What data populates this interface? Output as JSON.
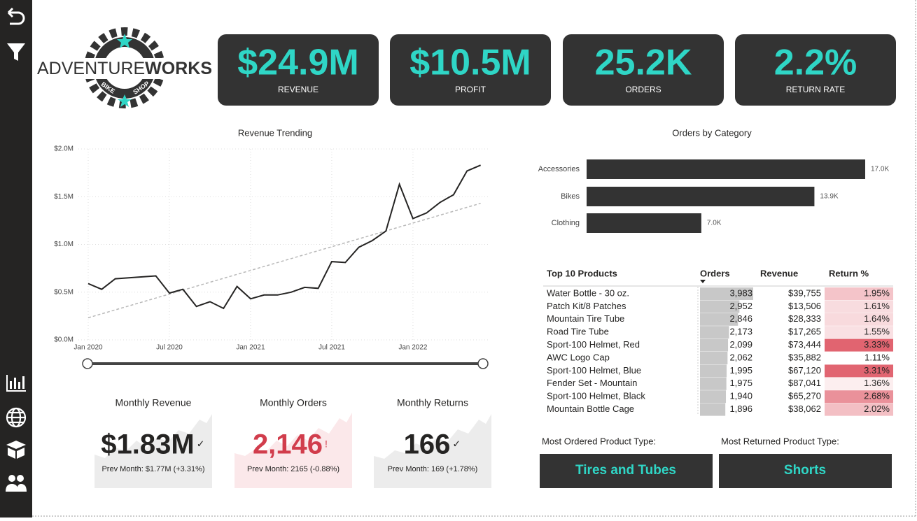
{
  "logo": {
    "name_light": "ADVENTURE",
    "name_bold": "WORKS",
    "ribbon_left": "BIKE",
    "ribbon_right": "SHOP"
  },
  "kpis": [
    {
      "value": "$24.9M",
      "label": "REVENUE"
    },
    {
      "value": "$10.5M",
      "label": "PROFIT"
    },
    {
      "value": "25.2K",
      "label": "ORDERS"
    },
    {
      "value": "2.2%",
      "label": "RETURN RATE"
    }
  ],
  "chart_data": [
    {
      "type": "line",
      "title": "Revenue Trending",
      "categories": [
        "Jan 2020",
        null,
        null,
        null,
        null,
        null,
        "Jul 2020",
        null,
        null,
        null,
        null,
        null,
        "Jan 2021",
        null,
        null,
        null,
        null,
        null,
        "Jul 2021",
        null,
        null,
        null,
        null,
        null,
        "Jan 2022",
        null,
        null,
        null,
        null,
        null
      ],
      "values": [
        0.59,
        0.53,
        0.64,
        0.65,
        0.66,
        0.67,
        0.49,
        0.53,
        0.35,
        0.4,
        0.33,
        0.56,
        0.43,
        0.47,
        0.47,
        0.5,
        0.55,
        0.54,
        0.82,
        0.81,
        0.97,
        1.04,
        1.14,
        1.63,
        1.27,
        1.33,
        1.44,
        1.52,
        1.77,
        1.83
      ],
      "color": "#252423",
      "ylim": [
        0,
        2.0
      ],
      "yticks": [
        {
          "value": 0,
          "label": "$0.0M"
        },
        {
          "value": 0.5,
          "label": "$0.5M"
        },
        {
          "value": 1.0,
          "label": "$1.0M"
        },
        {
          "value": 1.5,
          "label": "$1.5M"
        },
        {
          "value": 2.0,
          "label": "$2.0M"
        }
      ],
      "grid": true,
      "trendline": true,
      "trendline_color": "#b8b8b8"
    },
    {
      "type": "bar",
      "orientation": "horizontal",
      "title": "Orders by Category",
      "categories": [
        "Accessories",
        "Bikes",
        "Clothing"
      ],
      "values": [
        17000,
        13900,
        7000
      ],
      "value_labels": [
        "17.0K",
        "13.9K",
        "7.0K"
      ],
      "color": "#333333"
    }
  ],
  "monthly_cards": [
    {
      "title": "Monthly Revenue",
      "value": "$1.83M",
      "status": "✓",
      "comparison": "Prev Month: $1.77M (+3.31%)",
      "color": "#252423"
    },
    {
      "title": "Monthly Orders",
      "value": "2,146",
      "status": "!",
      "comparison": "Prev Month: 2165 (-0.88%)",
      "color": "#d13d4c"
    },
    {
      "title": "Monthly Returns",
      "value": "166",
      "status": "✓",
      "comparison": "Prev Month: 169 (+1.78%)",
      "color": "#252423"
    }
  ],
  "table": {
    "headers": [
      "Top 10 Products",
      "Orders",
      "Revenue",
      "Return %"
    ],
    "rows": [
      [
        "Water Bottle - 30 oz.",
        "3,983",
        "$39,755",
        "1.95%"
      ],
      [
        "Patch Kit/8 Patches",
        "2,952",
        "$13,506",
        "1.61%"
      ],
      [
        "Mountain Tire Tube",
        "2,846",
        "$28,333",
        "1.64%"
      ],
      [
        "Road Tire Tube",
        "2,173",
        "$17,265",
        "1.55%"
      ],
      [
        "Sport-100 Helmet, Red",
        "2,099",
        "$73,444",
        "3.33%"
      ],
      [
        "AWC Logo Cap",
        "2,062",
        "$35,882",
        "1.11%"
      ],
      [
        "Sport-100 Helmet, Blue",
        "1,995",
        "$67,120",
        "3.31%"
      ],
      [
        "Fender Set - Mountain",
        "1,975",
        "$87,041",
        "1.36%"
      ],
      [
        "Sport-100 Helmet, Black",
        "1,940",
        "$65,270",
        "2.68%"
      ],
      [
        "Mountain Bottle Cage",
        "1,896",
        "$38,062",
        "2.02%"
      ]
    ]
  },
  "product_types": [
    {
      "label": "Most Ordered Product Type:",
      "value": "Tires and Tubes"
    },
    {
      "label": "Most Returned Product Type:",
      "value": "Shorts"
    }
  ]
}
